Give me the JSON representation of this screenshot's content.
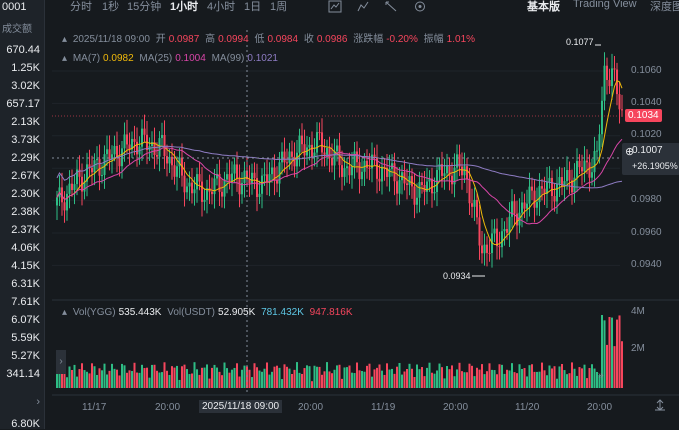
{
  "left_panel": {
    "header": "0001",
    "subheader": "成交额",
    "values": [
      "670.44",
      "1.25K",
      "3.02K",
      "657.17",
      "2.13K",
      "3.73K",
      "2.29K",
      "2.67K",
      "2.30K",
      "2.38K",
      "2.37K",
      "4.06K",
      "4.15K",
      "6.31K",
      "7.61K",
      "6.07K",
      "5.59K",
      "5.27K",
      "341.14"
    ],
    "bottom_value": "6.80K"
  },
  "toolbar": {
    "intervals": [
      "分时",
      "1秒",
      "15分钟",
      "1小时",
      "4小时",
      "1日",
      "1周"
    ],
    "active_interval": "1小时",
    "views": [
      "基本版",
      "Trading View",
      "深度图"
    ],
    "active_view": "基本版"
  },
  "ohlc": {
    "date": "2025/11/18 09:00",
    "open_label": "开",
    "open": "0.0987",
    "high_label": "高",
    "high": "0.0994",
    "low_label": "低",
    "low": "0.0984",
    "close_label": "收",
    "close": "0.0986",
    "change_label": "涨跌幅",
    "change": "-0.20%",
    "amplitude_label": "振幅",
    "amplitude": "1.01%"
  },
  "ma": {
    "ma7_label": "MA(7)",
    "ma7": "0.0982",
    "ma25_label": "MA(25)",
    "ma25": "0.1004",
    "ma99_label": "MA(99)",
    "ma99": "0.1021"
  },
  "volume_legend": {
    "vol_label": "Vol(YGG)",
    "vol": "535.443K",
    "usdt_label": "Vol(USDT)",
    "usdt": "52.905K",
    "v1": "781.432K",
    "v2": "947.816K"
  },
  "price_axis": {
    "ticks": [
      "0.1060",
      "0.1040",
      "0.1020",
      "0.0980",
      "0.0960",
      "0.0940"
    ],
    "current_price": "0.1034",
    "crosshair_price": "0.1007",
    "crosshair_pct": "+26.1905%"
  },
  "volume_axis": {
    "ticks": [
      "4M",
      "2M"
    ]
  },
  "time_axis": {
    "ticks": [
      "11/17",
      "20:00",
      "11/19",
      "20:00",
      "11/20",
      "20:00"
    ],
    "crosshair_time": "2025/11/18 09:00"
  },
  "annotations": {
    "high": "0.1077",
    "low": "0.0934"
  },
  "colors": {
    "up": "#2ebd85",
    "down": "#f6465d",
    "ma7": "#f0b90b",
    "ma25": "#d946a8",
    "ma99": "#8e7cc3",
    "vol_ma": "#5ec8e6"
  },
  "icons": [
    "indicator-icon",
    "chart-type-icon",
    "tools-icon",
    "settings-icon",
    "fullscreen-icon",
    "add-icon"
  ]
}
